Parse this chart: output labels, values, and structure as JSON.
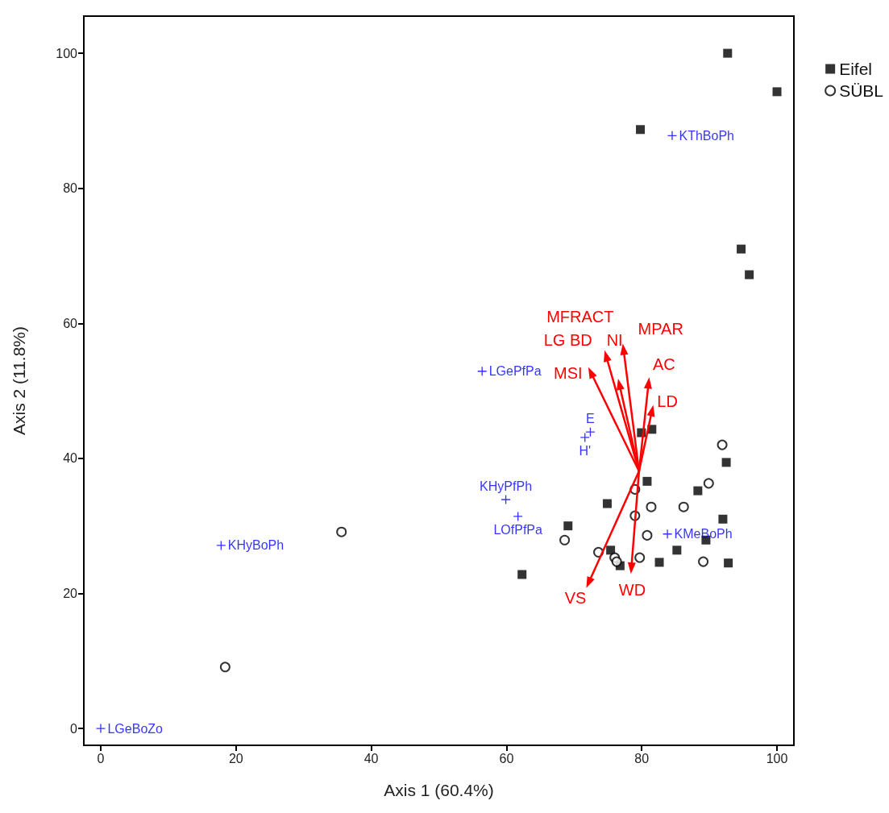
{
  "chart_data": {
    "type": "scatter",
    "xlabel": "Axis 1 (60.4%)",
    "ylabel": "Axis 2 (11.8%)",
    "xlim": [
      -2.5,
      102.5
    ],
    "ylim": [
      -2.5,
      105.5
    ],
    "xticks": [
      0,
      20,
      40,
      60,
      80,
      100
    ],
    "yticks": [
      0,
      20,
      40,
      60,
      80,
      100
    ],
    "grid": false,
    "legend": "top right",
    "series": [
      {
        "name": "Eifel",
        "color": "#000000",
        "marker": "square",
        "x": [
          92.7,
          100,
          79.8,
          94.7,
          95.9,
          79.95,
          81.5,
          80.8,
          88.3,
          92.5,
          74.9,
          69.1,
          92.0,
          89.5,
          62.3,
          75.4,
          76.8,
          82.6,
          85.2,
          92.8
        ],
        "values": [
          100,
          94.3,
          88.7,
          71.0,
          67.2,
          43.8,
          44.3,
          36.6,
          35.2,
          39.4,
          33.3,
          30.0,
          31.0,
          27.9,
          22.8,
          26.4,
          24.1,
          24.6,
          26.4,
          24.5
        ]
      },
      {
        "name": "SÜBL",
        "color": "#000000",
        "marker": "circle",
        "x": [
          91.9,
          89.9,
          79.0,
          81.4,
          86.2,
          79.0,
          80.8,
          68.6,
          73.6,
          76.0,
          76.3,
          79.7,
          89.1,
          35.6,
          18.4
        ],
        "values": [
          42.0,
          36.3,
          35.4,
          32.8,
          32.8,
          31.5,
          28.6,
          27.9,
          26.1,
          25.3,
          24.7,
          25.3,
          24.7,
          29.1,
          9.1
        ]
      },
      {
        "name": "LGeBoZo",
        "color": "#0000ff",
        "marker": "cross",
        "x": [
          0
        ],
        "values": [
          0
        ]
      },
      {
        "name": "KHyBoPh",
        "color": "#0000ff",
        "marker": "cross",
        "x": [
          17.8
        ],
        "values": [
          27.1
        ]
      },
      {
        "name": "LGePfPa",
        "color": "#0000ff",
        "marker": "cross",
        "x": [
          56.4
        ],
        "values": [
          52.9
        ]
      },
      {
        "name": "KHyPfPh",
        "color": "#0000ff",
        "marker": "cross",
        "x": [
          59.9
        ],
        "values": [
          33.9
        ]
      },
      {
        "name": "LOfPfPa",
        "color": "#0000ff",
        "marker": "cross",
        "x": [
          61.7
        ],
        "values": [
          31.4
        ]
      },
      {
        "name": "E",
        "color": "#0000ff",
        "marker": "cross",
        "x": [
          72.4
        ],
        "values": [
          43.9
        ]
      },
      {
        "name": "H'",
        "color": "#0000ff",
        "marker": "cross",
        "x": [
          71.6
        ],
        "values": [
          43.1
        ]
      },
      {
        "name": "KMeBoPh",
        "color": "#0000ff",
        "marker": "cross",
        "x": [
          83.8
        ],
        "values": [
          28.8
        ]
      },
      {
        "name": "KThBoPh",
        "color": "#0000ff",
        "marker": "cross",
        "x": [
          84.5
        ],
        "values": [
          87.8
        ]
      }
    ],
    "annotations": [
      "MFRACT",
      "LG BD",
      "NI",
      "MPAR",
      "AC",
      "LD",
      "MSI",
      "VS",
      "WD"
    ]
  }
}
